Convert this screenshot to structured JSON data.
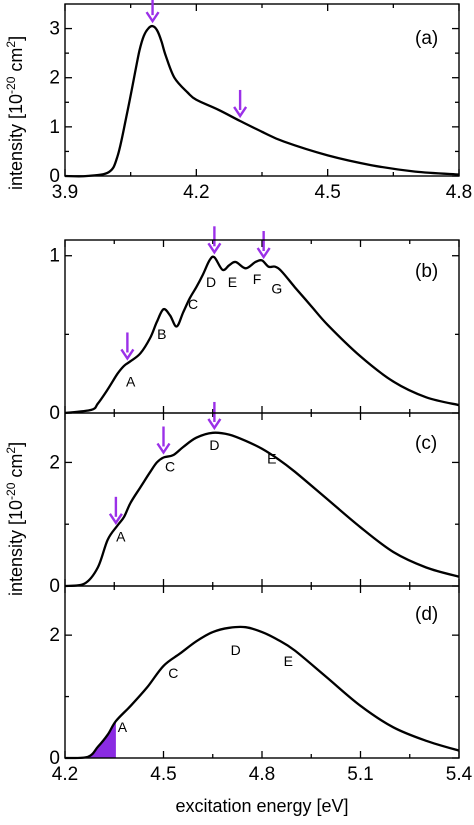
{
  "colors": {
    "arrow": "#9b30e8",
    "fill": "#8a2be2",
    "line": "#000000"
  },
  "left_axis_titles": {
    "top": "intensity [10-20 cm2]",
    "top_parts": [
      "intensity [10",
      "-20",
      " cm",
      "2",
      "]"
    ],
    "bottom": "intensity [10-20 cm2]",
    "bottom_parts": [
      "intensity [10",
      "-20",
      " cm",
      "2",
      "]"
    ]
  },
  "x_axis_title": "excitation energy [eV]",
  "chart_data": [
    {
      "id": "a",
      "type": "line",
      "label": "(a)",
      "xlim": [
        3.9,
        4.8
      ],
      "ylim": [
        0,
        3.5
      ],
      "xticks": [
        "3.9",
        "4.2",
        "4.5",
        "4.8"
      ],
      "yticks": [
        "0",
        "1",
        "2",
        "3"
      ],
      "x": [
        3.9,
        3.95,
        4.0,
        4.02,
        4.04,
        4.06,
        4.07,
        4.08,
        4.09,
        4.1,
        4.11,
        4.12,
        4.13,
        4.15,
        4.18,
        4.2,
        4.25,
        4.3,
        4.35,
        4.4,
        4.5,
        4.6,
        4.7,
        4.8
      ],
      "y": [
        0.0,
        0.0,
        0.08,
        0.4,
        1.2,
        2.1,
        2.55,
        2.85,
        3.0,
        3.05,
        2.97,
        2.75,
        2.45,
        2.0,
        1.7,
        1.55,
        1.35,
        1.12,
        0.9,
        0.7,
        0.42,
        0.22,
        0.09,
        0.03
      ],
      "arrows_x": [
        4.1,
        4.3
      ],
      "annotations": []
    },
    {
      "id": "b",
      "type": "line",
      "label": "(b)",
      "xlim": [
        4.2,
        5.4
      ],
      "ylim": [
        0,
        1.1
      ],
      "xticks": [],
      "yticks": [
        "0",
        "1"
      ],
      "x": [
        4.2,
        4.28,
        4.3,
        4.33,
        4.36,
        4.38,
        4.4,
        4.43,
        4.46,
        4.48,
        4.5,
        4.52,
        4.54,
        4.56,
        4.58,
        4.6,
        4.62,
        4.64,
        4.655,
        4.68,
        4.7,
        4.72,
        4.75,
        4.78,
        4.8,
        4.82,
        4.84,
        4.86,
        4.9,
        4.95,
        5.0,
        5.1,
        5.2,
        5.3,
        5.4
      ],
      "y": [
        0.0,
        0.02,
        0.06,
        0.15,
        0.25,
        0.3,
        0.33,
        0.38,
        0.48,
        0.58,
        0.66,
        0.62,
        0.55,
        0.64,
        0.73,
        0.8,
        0.88,
        0.97,
        0.99,
        0.91,
        0.94,
        0.96,
        0.92,
        0.96,
        0.97,
        0.93,
        0.93,
        0.9,
        0.8,
        0.68,
        0.56,
        0.36,
        0.2,
        0.1,
        0.05
      ],
      "arrows_x": [
        4.39,
        4.655,
        4.805
      ],
      "annotations": [
        {
          "text": "A",
          "x": 4.4,
          "y": 0.17
        },
        {
          "text": "B",
          "x": 4.495,
          "y": 0.47
        },
        {
          "text": "C",
          "x": 4.59,
          "y": 0.66
        },
        {
          "text": "D",
          "x": 4.645,
          "y": 0.8
        },
        {
          "text": "E",
          "x": 4.71,
          "y": 0.8
        },
        {
          "text": "F",
          "x": 4.785,
          "y": 0.82
        },
        {
          "text": "G",
          "x": 4.845,
          "y": 0.76
        }
      ]
    },
    {
      "id": "c",
      "type": "line",
      "label": "(c)",
      "xlim": [
        4.2,
        5.4
      ],
      "ylim": [
        0,
        2.8
      ],
      "xticks": [],
      "yticks": [
        "0",
        "2"
      ],
      "x": [
        4.2,
        4.26,
        4.3,
        4.33,
        4.36,
        4.38,
        4.4,
        4.43,
        4.46,
        4.48,
        4.5,
        4.53,
        4.56,
        4.6,
        4.65,
        4.7,
        4.75,
        4.8,
        4.85,
        4.9,
        5.0,
        5.1,
        5.2,
        5.3,
        5.4
      ],
      "y": [
        0.0,
        0.04,
        0.3,
        0.75,
        0.98,
        1.12,
        1.35,
        1.6,
        1.85,
        2.0,
        2.08,
        2.12,
        2.25,
        2.4,
        2.48,
        2.45,
        2.35,
        2.22,
        2.05,
        1.85,
        1.4,
        0.95,
        0.55,
        0.3,
        0.15
      ],
      "arrows_x": [
        4.355,
        4.5,
        4.655
      ],
      "annotations": [
        {
          "text": "A",
          "x": 4.37,
          "y": 0.72
        },
        {
          "text": "C",
          "x": 4.52,
          "y": 1.85
        },
        {
          "text": "D",
          "x": 4.655,
          "y": 2.2
        },
        {
          "text": "E",
          "x": 4.83,
          "y": 1.98
        }
      ]
    },
    {
      "id": "d",
      "type": "line",
      "label": "(d)",
      "xlim": [
        4.2,
        5.4
      ],
      "ylim": [
        0,
        2.8
      ],
      "xticks": [
        "4.2",
        "4.5",
        "4.8",
        "5.1",
        "5.4"
      ],
      "yticks": [
        "0",
        "2"
      ],
      "x": [
        4.2,
        4.27,
        4.3,
        4.33,
        4.355,
        4.4,
        4.45,
        4.5,
        4.55,
        4.6,
        4.65,
        4.7,
        4.75,
        4.8,
        4.85,
        4.9,
        5.0,
        5.1,
        5.2,
        5.3,
        5.4
      ],
      "y": [
        0.0,
        0.02,
        0.18,
        0.38,
        0.6,
        0.85,
        1.15,
        1.5,
        1.7,
        1.9,
        2.05,
        2.12,
        2.13,
        2.05,
        1.92,
        1.75,
        1.3,
        0.85,
        0.5,
        0.28,
        0.12
      ],
      "arrows_x": [],
      "fill_to_x": 4.355,
      "annotations": [
        {
          "text": "A",
          "x": 4.375,
          "y": 0.42
        },
        {
          "text": "C",
          "x": 4.53,
          "y": 1.3
        },
        {
          "text": "D",
          "x": 4.72,
          "y": 1.68
        },
        {
          "text": "E",
          "x": 4.88,
          "y": 1.5
        }
      ]
    }
  ]
}
